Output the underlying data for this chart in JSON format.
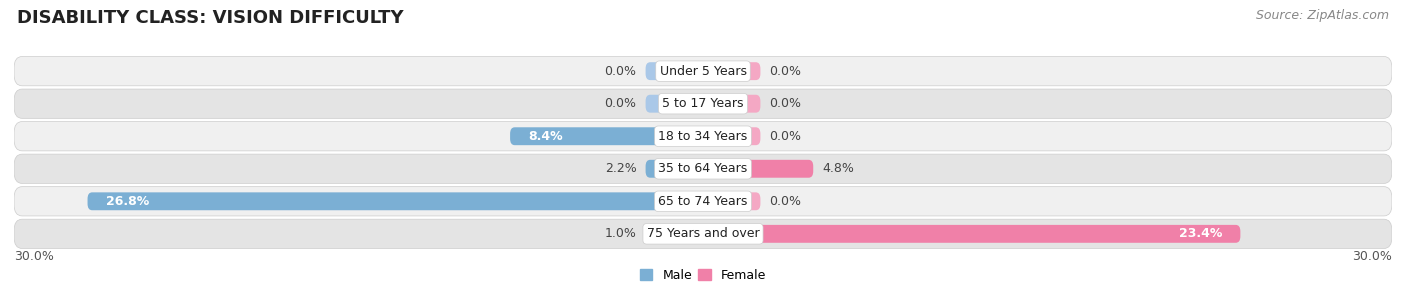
{
  "title": "DISABILITY CLASS: VISION DIFFICULTY",
  "source": "Source: ZipAtlas.com",
  "categories": [
    "Under 5 Years",
    "5 to 17 Years",
    "18 to 34 Years",
    "35 to 64 Years",
    "65 to 74 Years",
    "75 Years and over"
  ],
  "male_values": [
    0.0,
    0.0,
    8.4,
    2.2,
    26.8,
    1.0
  ],
  "female_values": [
    0.0,
    0.0,
    0.0,
    4.8,
    0.0,
    23.4
  ],
  "male_color": "#7bafd4",
  "female_color": "#f080a8",
  "male_color_light": "#aac8e8",
  "female_color_light": "#f4a8c4",
  "row_bg_color_odd": "#f0f0f0",
  "row_bg_color_even": "#e4e4e4",
  "row_border_color": "#cccccc",
  "xlim": 30.0,
  "min_bar_width": 2.5,
  "title_fontsize": 13,
  "source_fontsize": 9,
  "label_fontsize": 9,
  "category_fontsize": 9,
  "legend_fontsize": 9,
  "bar_height": 0.55,
  "background_color": "#ffffff"
}
